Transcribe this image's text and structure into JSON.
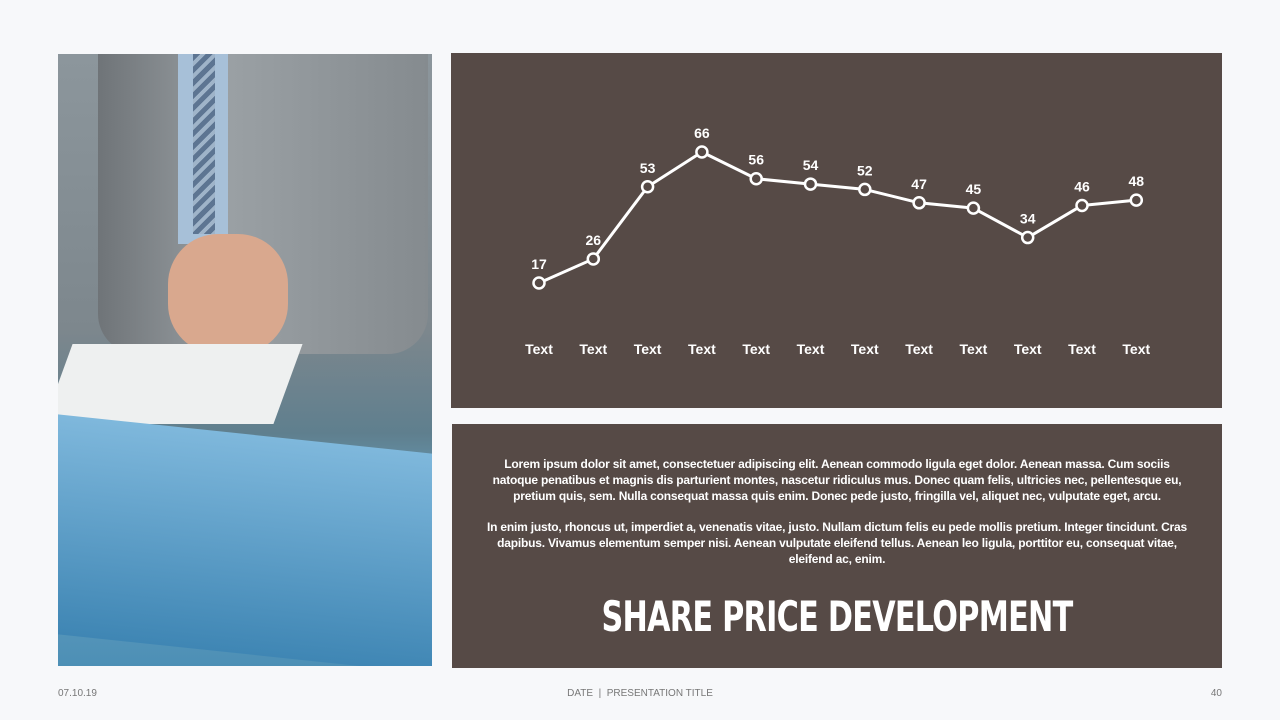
{
  "chart_data": {
    "type": "line",
    "categories": [
      "Text",
      "Text",
      "Text",
      "Text",
      "Text",
      "Text",
      "Text",
      "Text",
      "Text",
      "Text",
      "Text",
      "Text"
    ],
    "values": [
      17,
      26,
      53,
      66,
      56,
      54,
      52,
      47,
      45,
      34,
      46,
      48
    ],
    "ylim": [
      17,
      66
    ],
    "grid": false,
    "line_color": "#ffffff",
    "background": "#564a46"
  },
  "text": {
    "paragraph1": "Lorem ipsum dolor sit amet, consectetuer adipiscing elit. Aenean commodo ligula eget dolor. Aenean massa. Cum sociis natoque penatibus et magnis dis parturient montes, nascetur ridiculus mus. Donec quam felis, ultricies nec, pellentesque eu, pretium quis, sem. Nulla consequat massa quis enim. Donec pede justo, fringilla vel, aliquet nec, vulputate eget, arcu.",
    "paragraph2": "In enim justo, rhoncus ut, imperdiet a, venenatis vitae, justo. Nullam dictum felis eu pede mollis pretium. Integer tincidunt. Cras dapibus. Vivamus elementum semper nisi. Aenean vulputate eleifend tellus. Aenean leo ligula, porttitor eu, consequat vitae, eleifend ac, enim.",
    "title": "SHARE PRICE DEVELOPMENT"
  },
  "footer": {
    "date": "07.10.19",
    "center": "DATE  |  PRESENTATION TITLE",
    "page": "40"
  }
}
